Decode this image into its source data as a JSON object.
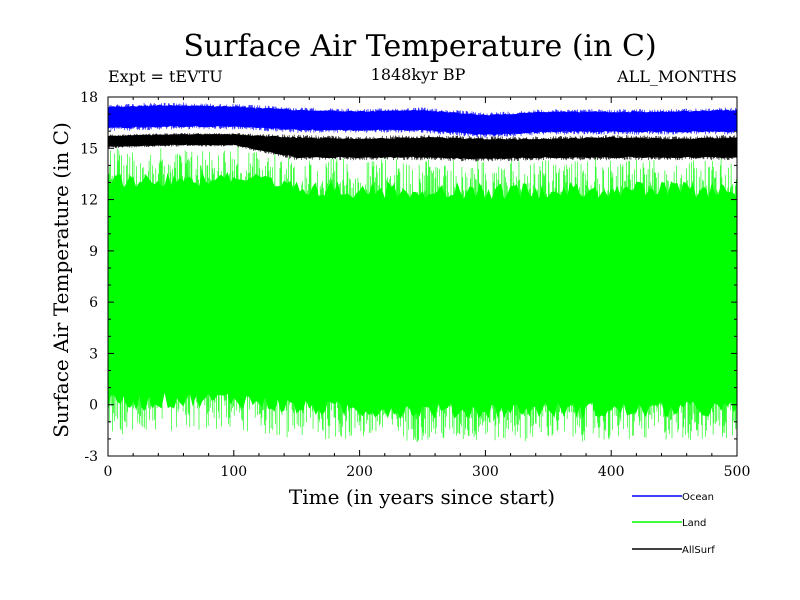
{
  "chart_data": {
    "type": "line",
    "title": "Surface Air Temperature (in C)",
    "subtitle_left": "Expt = tEVTU",
    "subtitle_center": "1848kyr BP",
    "subtitle_right": "ALL_MONTHS",
    "xlabel": "Time (in years since start)",
    "ylabel": "Surface Air Temperature (in C)",
    "xlim": [
      0,
      500
    ],
    "ylim": [
      -3,
      18
    ],
    "x_ticks": [
      0,
      100,
      200,
      300,
      400,
      500
    ],
    "y_ticks": [
      -3,
      0,
      3,
      6,
      9,
      12,
      15,
      18
    ],
    "grid": false,
    "legend_position": "bottom-right",
    "series": [
      {
        "name": "Ocean",
        "color": "#0000ff",
        "x": [
          0,
          50,
          100,
          150,
          200,
          250,
          300,
          350,
          400,
          450,
          500
        ],
        "upper": [
          17.6,
          17.7,
          17.6,
          17.4,
          17.3,
          17.4,
          17.1,
          17.3,
          17.3,
          17.3,
          17.4
        ],
        "lower": [
          16.0,
          16.1,
          16.1,
          15.9,
          15.9,
          15.9,
          15.6,
          15.8,
          15.8,
          15.8,
          15.8
        ]
      },
      {
        "name": "Land",
        "color": "#00ff00",
        "x": [
          0,
          50,
          100,
          150,
          200,
          250,
          300,
          350,
          400,
          450,
          500
        ],
        "upper": [
          15.0,
          15.0,
          15.2,
          14.4,
          14.4,
          14.4,
          14.3,
          14.4,
          14.4,
          14.4,
          14.4
        ],
        "lower": [
          -1.8,
          -1.6,
          -1.5,
          -2.0,
          -2.1,
          -2.2,
          -2.2,
          -2.1,
          -2.2,
          -2.1,
          -2.1
        ]
      },
      {
        "name": "AllSurf",
        "color": "#000000",
        "x": [
          0,
          50,
          100,
          150,
          200,
          250,
          300,
          350,
          400,
          450,
          500
        ],
        "upper": [
          15.8,
          15.9,
          15.9,
          15.8,
          15.7,
          15.8,
          15.7,
          15.7,
          15.8,
          15.7,
          15.8
        ],
        "lower": [
          15.0,
          15.1,
          15.1,
          14.3,
          14.3,
          14.3,
          14.2,
          14.3,
          14.3,
          14.3,
          14.3
        ]
      }
    ]
  }
}
